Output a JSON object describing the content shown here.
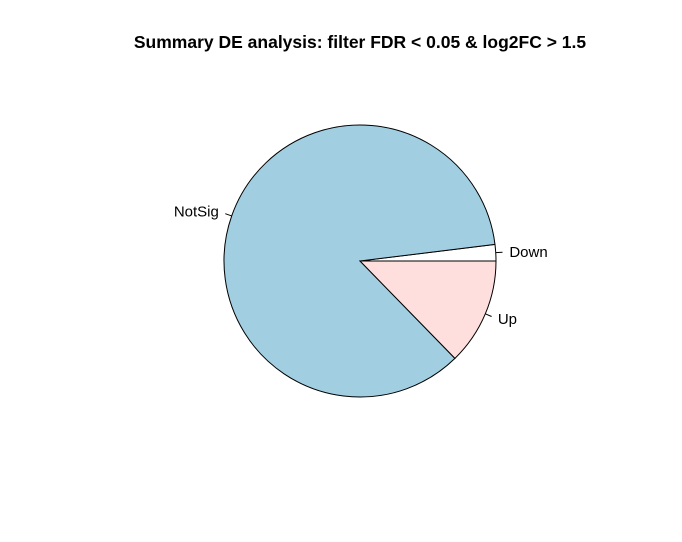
{
  "chart_data": {
    "type": "pie",
    "title": "Summary DE analysis: filter FDR < 0.05 & log2FC > 1.5",
    "start_angle_deg": 0,
    "direction": "counterclockwise",
    "slices": [
      {
        "label": "Down",
        "value": 0.0195,
        "color": "#FFFFFF"
      },
      {
        "label": "NotSig",
        "value": 0.8535,
        "color": "#A1CFE1"
      },
      {
        "label": "Up",
        "value": 0.127,
        "color": "#FFDEDE"
      }
    ]
  }
}
